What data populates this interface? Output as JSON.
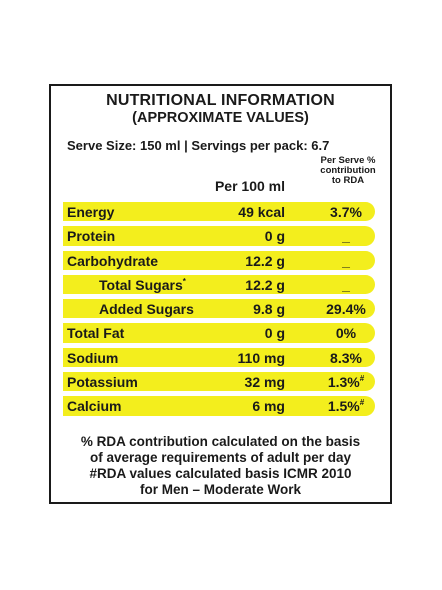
{
  "panel": {
    "title_line1": "NUTRITIONAL INFORMATION",
    "title_line2": "(APPROXIMATE VALUES)",
    "serve_info": "Serve Size: 150 ml | Servings per pack: 6.7",
    "col_per100": "Per 100 ml",
    "col_rda_line1": "Per Serve %",
    "col_rda_line2": "contribution",
    "col_rda_line3": "to RDA"
  },
  "rows": [
    {
      "name": "Energy",
      "value": "49 kcal",
      "pct": "3.7%",
      "pct_sup": ""
    },
    {
      "name": "Protein",
      "value": "0 g",
      "pct": "_",
      "pct_sup": ""
    },
    {
      "name": "Carbohydrate",
      "value": "12.2 g",
      "pct": "_",
      "pct_sup": ""
    },
    {
      "name": "Total Sugars",
      "name_sup": "*",
      "value": "12.2 g",
      "pct": "_",
      "pct_sup": ""
    },
    {
      "name": "Added Sugars",
      "value": "9.8 g",
      "pct": "29.4%",
      "pct_sup": ""
    },
    {
      "name": "Total Fat",
      "value": "0 g",
      "pct": "0%",
      "pct_sup": ""
    },
    {
      "name": "Sodium",
      "value": "110 mg",
      "pct": "8.3%",
      "pct_sup": ""
    },
    {
      "name": "Potassium",
      "value": "32 mg",
      "pct": "1.3%",
      "pct_sup": "#"
    },
    {
      "name": "Calcium",
      "value": "6 mg",
      "pct": "1.5%",
      "pct_sup": "#"
    }
  ],
  "footer": {
    "line1": "% RDA contribution calculated on the basis",
    "line2": "of average requirements of adult per day",
    "line3": "#RDA values calculated basis ICMR 2010",
    "line4": "for Men – Moderate  Work"
  },
  "colors": {
    "highlight": "#f3ee1d",
    "border": "#1a1a1a"
  }
}
